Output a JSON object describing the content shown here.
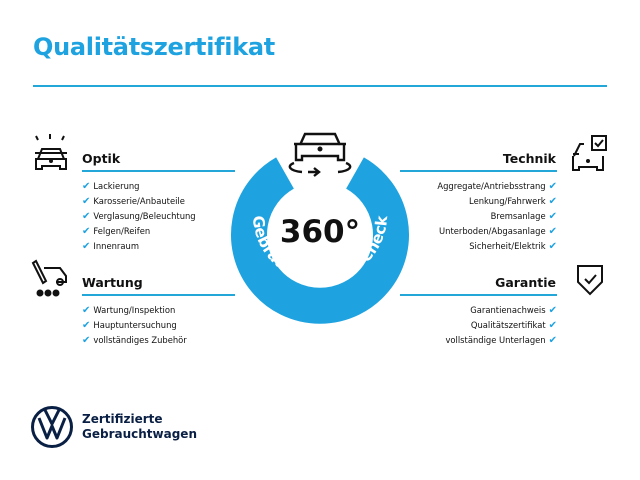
{
  "title": "Qualitätszertifikat",
  "center": {
    "big": "360°",
    "arc_text": "Gebrauchtwagen-Check",
    "icon": "car-rotate-icon"
  },
  "sections": {
    "optik": {
      "label": "Optik",
      "icon": "car-lights-icon",
      "items": [
        "Lackierung",
        "Karosserie/Anbauteile",
        "Verglasung/Beleuchtung",
        "Felgen/Reifen",
        "Innenraum"
      ]
    },
    "wartung": {
      "label": "Wartung",
      "icon": "service-tools-icon",
      "items": [
        "Wartung/Inspektion",
        "Hauptuntersuchung",
        "vollständiges Zubehör"
      ]
    },
    "technik": {
      "label": "Technik",
      "icon": "car-checklist-icon",
      "items": [
        "Aggregate/Antriebsstrang",
        "Lenkung/Fahrwerk",
        "Bremsanlage",
        "Unterboden/Abgasanlage",
        "Sicherheit/Elektrik"
      ]
    },
    "garantie": {
      "label": "Garantie",
      "icon": "shield-check-icon",
      "items": [
        "Garantienachweis",
        "Qualitätszertifikat",
        "vollständige Unterlagen"
      ]
    }
  },
  "check_glyph": "✔",
  "brand": {
    "line1": "Zertifizierte",
    "line2": "Gebrauchtwagen",
    "logo": "vw-logo-icon"
  },
  "colors": {
    "accent": "#1ea3e0",
    "rule": "#23a6d8",
    "dark": "#0a1f44"
  }
}
